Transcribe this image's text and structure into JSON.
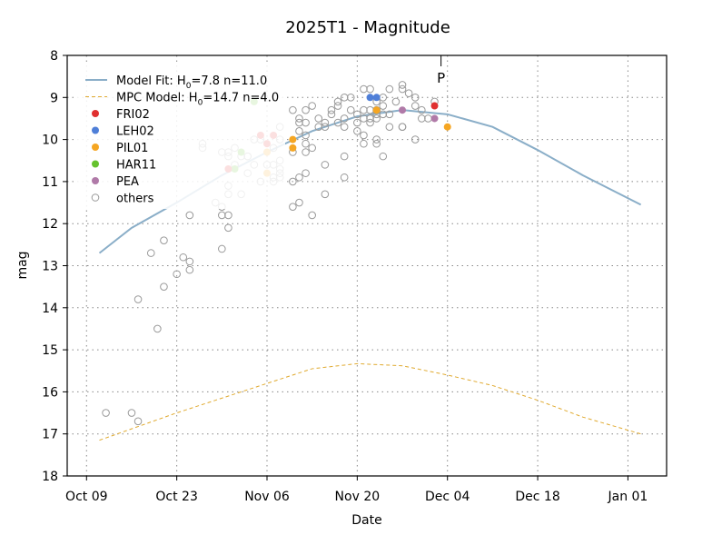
{
  "chart_data": {
    "type": "scatter",
    "title": "2025T1 - Magnitude",
    "xlabel": "Date",
    "ylabel": "mag",
    "x_ticks": [
      {
        "date": "2025-10-09",
        "label": "Oct 09"
      },
      {
        "date": "2025-10-23",
        "label": "Oct 23"
      },
      {
        "date": "2025-11-06",
        "label": "Nov 06"
      },
      {
        "date": "2025-11-20",
        "label": "Nov 20"
      },
      {
        "date": "2025-12-04",
        "label": "Dec 04"
      },
      {
        "date": "2025-12-18",
        "label": "Dec 18"
      },
      {
        "date": "2026-01-01",
        "label": "Jan 01"
      }
    ],
    "xlim": [
      "2025-10-06",
      "2026-01-07"
    ],
    "y_ticks": [
      8,
      9,
      10,
      11,
      12,
      13,
      14,
      15,
      16,
      17,
      18
    ],
    "ylim": [
      18,
      8
    ],
    "y_inverted": true,
    "grid": true,
    "legend_placement": "top-left",
    "perihelion_marker": {
      "date": "2025-12-03",
      "label": "P"
    },
    "lines": [
      {
        "name": "Model Fit: H",
        "sub": "0",
        "suffix": "=7.8 n=11.0",
        "color": "#8aaec8",
        "style": "solid",
        "points": [
          [
            "2025-10-11",
            12.7
          ],
          [
            "2025-10-16",
            12.1
          ],
          [
            "2025-10-23",
            11.5
          ],
          [
            "2025-10-30",
            10.85
          ],
          [
            "2025-11-06",
            10.3
          ],
          [
            "2025-11-13",
            9.8
          ],
          [
            "2025-11-20",
            9.45
          ],
          [
            "2025-11-27",
            9.3
          ],
          [
            "2025-12-04",
            9.4
          ],
          [
            "2025-12-11",
            9.7
          ],
          [
            "2025-12-18",
            10.25
          ],
          [
            "2025-12-25",
            10.85
          ],
          [
            "2026-01-03",
            11.55
          ]
        ]
      },
      {
        "name": "MPC Model: H",
        "sub": "0",
        "suffix": "=14.7 n=4.0",
        "color": "#e0aa30",
        "style": "dashed",
        "points": [
          [
            "2025-10-11",
            17.15
          ],
          [
            "2025-10-23",
            16.5
          ],
          [
            "2025-11-06",
            15.8
          ],
          [
            "2025-11-13",
            15.45
          ],
          [
            "2025-11-20",
            15.33
          ],
          [
            "2025-11-27",
            15.38
          ],
          [
            "2025-12-04",
            15.6
          ],
          [
            "2025-12-11",
            15.85
          ],
          [
            "2025-12-18",
            16.2
          ],
          [
            "2025-12-25",
            16.6
          ],
          [
            "2026-01-03",
            17.0
          ]
        ]
      }
    ],
    "series": [
      {
        "name": "FRI02",
        "color": "#e03030",
        "filled": true,
        "points": [
          [
            "2025-10-31",
            10.7
          ],
          [
            "2025-11-05",
            9.9
          ],
          [
            "2025-11-06",
            10.1
          ],
          [
            "2025-11-07",
            9.9
          ],
          [
            "2025-12-02",
            9.2
          ]
        ]
      },
      {
        "name": "LEH02",
        "color": "#4f7fd8",
        "filled": true,
        "points": [
          [
            "2025-11-22",
            9.0
          ],
          [
            "2025-11-23",
            9.0
          ]
        ]
      },
      {
        "name": "PIL01",
        "color": "#f5a623",
        "filled": true,
        "points": [
          [
            "2025-11-06",
            10.3
          ],
          [
            "2025-11-06",
            10.8
          ],
          [
            "2025-11-10",
            10.0
          ],
          [
            "2025-11-10",
            10.2
          ],
          [
            "2025-11-23",
            9.3
          ],
          [
            "2025-12-04",
            9.7
          ]
        ]
      },
      {
        "name": "HAR11",
        "color": "#66c22e",
        "filled": true,
        "points": [
          [
            "2025-11-04",
            9.1
          ],
          [
            "2025-11-02",
            10.3
          ],
          [
            "2025-11-01",
            10.7
          ]
        ]
      },
      {
        "name": "PEA",
        "color": "#b07aa8",
        "filled": true,
        "points": [
          [
            "2025-11-27",
            9.3
          ],
          [
            "2025-12-02",
            9.5
          ]
        ]
      },
      {
        "name": "others",
        "color": "#999999",
        "filled": false,
        "points": [
          [
            "2025-10-12",
            16.5
          ],
          [
            "2025-10-16",
            16.5
          ],
          [
            "2025-10-17",
            16.7
          ],
          [
            "2025-10-17",
            13.8
          ],
          [
            "2025-10-20",
            14.5
          ],
          [
            "2025-10-19",
            12.7
          ],
          [
            "2025-10-21",
            12.4
          ],
          [
            "2025-10-21",
            13.5
          ],
          [
            "2025-10-23",
            13.2
          ],
          [
            "2025-10-24",
            12.8
          ],
          [
            "2025-10-25",
            12.9
          ],
          [
            "2025-10-25",
            13.1
          ],
          [
            "2025-10-25",
            11.8
          ],
          [
            "2025-10-27",
            10.2
          ],
          [
            "2025-10-27",
            10.1
          ],
          [
            "2025-10-29",
            11.5
          ],
          [
            "2025-10-30",
            10.3
          ],
          [
            "2025-10-30",
            11.6
          ],
          [
            "2025-10-30",
            11.8
          ],
          [
            "2025-10-30",
            12.6
          ],
          [
            "2025-10-31",
            11.3
          ],
          [
            "2025-10-31",
            11.1
          ],
          [
            "2025-10-31",
            12.1
          ],
          [
            "2025-10-31",
            11.8
          ],
          [
            "2025-10-31",
            10.3
          ],
          [
            "2025-10-31",
            10.4
          ],
          [
            "2025-11-01",
            10.6
          ],
          [
            "2025-11-02",
            11.3
          ],
          [
            "2025-11-01",
            10.2
          ],
          [
            "2025-11-02",
            10.4
          ],
          [
            "2025-11-03",
            10.4
          ],
          [
            "2025-11-03",
            10.4
          ],
          [
            "2025-11-03",
            10.8
          ],
          [
            "2025-11-04",
            10.0
          ],
          [
            "2025-11-04",
            10.6
          ],
          [
            "2025-11-05",
            11.0
          ],
          [
            "2025-11-05",
            10.0
          ],
          [
            "2025-11-06",
            10.6
          ],
          [
            "2025-11-07",
            10.9
          ],
          [
            "2025-11-07",
            10.2
          ],
          [
            "2025-11-07",
            11.0
          ],
          [
            "2025-11-07",
            10.6
          ],
          [
            "2025-11-08",
            10.5
          ],
          [
            "2025-11-08",
            10.7
          ],
          [
            "2025-11-08",
            10.8
          ],
          [
            "2025-11-08",
            10.9
          ],
          [
            "2025-11-08",
            9.7
          ],
          [
            "2025-11-08",
            10.0
          ],
          [
            "2025-11-10",
            9.3
          ],
          [
            "2025-11-10",
            10.3
          ],
          [
            "2025-11-10",
            11.0
          ],
          [
            "2025-11-10",
            11.6
          ],
          [
            "2025-11-11",
            9.5
          ],
          [
            "2025-11-11",
            9.6
          ],
          [
            "2025-11-11",
            9.8
          ],
          [
            "2025-11-11",
            10.9
          ],
          [
            "2025-11-11",
            11.5
          ],
          [
            "2025-11-12",
            9.3
          ],
          [
            "2025-11-12",
            10.3
          ],
          [
            "2025-11-12",
            9.9
          ],
          [
            "2025-11-12",
            10.1
          ],
          [
            "2025-11-12",
            10.8
          ],
          [
            "2025-11-13",
            10.2
          ],
          [
            "2025-11-12",
            9.6
          ],
          [
            "2025-11-13",
            9.2
          ],
          [
            "2025-11-13",
            11.8
          ],
          [
            "2025-11-14",
            9.5
          ],
          [
            "2025-11-14",
            9.7
          ],
          [
            "2025-11-15",
            9.7
          ],
          [
            "2025-11-15",
            9.6
          ],
          [
            "2025-11-15",
            11.3
          ],
          [
            "2025-11-15",
            10.6
          ],
          [
            "2025-11-16",
            9.4
          ],
          [
            "2025-11-16",
            9.3
          ],
          [
            "2025-11-17",
            9.6
          ],
          [
            "2025-11-17",
            9.1
          ],
          [
            "2025-11-17",
            9.2
          ],
          [
            "2025-11-18",
            9.0
          ],
          [
            "2025-11-18",
            9.5
          ],
          [
            "2025-11-18",
            10.4
          ],
          [
            "2025-11-18",
            10.9
          ],
          [
            "2025-11-18",
            9.7
          ],
          [
            "2025-11-19",
            9.0
          ],
          [
            "2025-11-19",
            9.3
          ],
          [
            "2025-11-20",
            9.4
          ],
          [
            "2025-11-20",
            9.6
          ],
          [
            "2025-11-20",
            9.8
          ],
          [
            "2025-11-21",
            9.9
          ],
          [
            "2025-11-21",
            9.3
          ],
          [
            "2025-11-21",
            9.5
          ],
          [
            "2025-11-21",
            10.1
          ],
          [
            "2025-11-21",
            8.8
          ],
          [
            "2025-11-22",
            9.3
          ],
          [
            "2025-11-22",
            9.5
          ],
          [
            "2025-11-22",
            9.6
          ],
          [
            "2025-11-22",
            8.8
          ],
          [
            "2025-11-23",
            9.3
          ],
          [
            "2025-11-23",
            9.1
          ],
          [
            "2025-11-23",
            9.3
          ],
          [
            "2025-11-23",
            9.4
          ],
          [
            "2025-11-23",
            9.5
          ],
          [
            "2025-11-23",
            10.0
          ],
          [
            "2025-11-23",
            10.1
          ],
          [
            "2025-11-24",
            9.2
          ],
          [
            "2025-11-24",
            9.0
          ],
          [
            "2025-11-24",
            9.4
          ],
          [
            "2025-11-24",
            10.4
          ],
          [
            "2025-11-25",
            8.8
          ],
          [
            "2025-11-25",
            9.7
          ],
          [
            "2025-11-25",
            9.4
          ],
          [
            "2025-11-26",
            9.1
          ],
          [
            "2025-11-27",
            9.7
          ],
          [
            "2025-11-27",
            9.7
          ],
          [
            "2025-11-27",
            8.7
          ],
          [
            "2025-11-27",
            8.8
          ],
          [
            "2025-11-28",
            8.9
          ],
          [
            "2025-11-29",
            10.0
          ],
          [
            "2025-11-29",
            9.0
          ],
          [
            "2025-11-29",
            9.2
          ],
          [
            "2025-11-30",
            9.3
          ],
          [
            "2025-11-30",
            9.5
          ],
          [
            "2025-12-01",
            9.5
          ],
          [
            "2025-12-02",
            9.1
          ]
        ]
      }
    ]
  }
}
